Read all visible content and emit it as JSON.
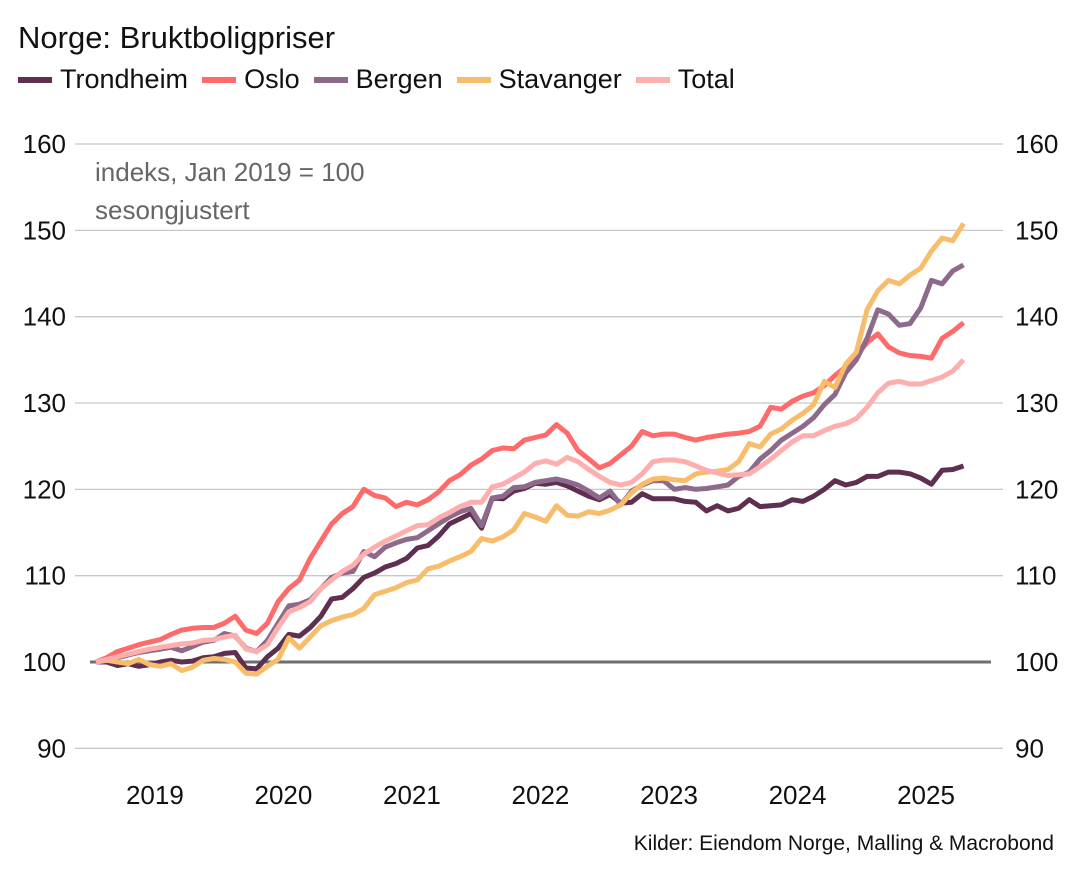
{
  "chart_data": {
    "type": "line",
    "title": "Norge: Bruktboligpriser",
    "annotations": [
      "indeks, Jan 2019 = 100",
      "sesongjustert"
    ],
    "source": "Kilder: Eiendom Norge, Malling & Macrobond",
    "ylim": [
      90,
      160
    ],
    "yticks": [
      90,
      100,
      110,
      120,
      130,
      140,
      150,
      160
    ],
    "xtick_labels": [
      "2019",
      "2020",
      "2021",
      "2022",
      "2023",
      "2024",
      "2025"
    ],
    "grid": true,
    "legend_placement": "top",
    "reference_line": 100,
    "x": [
      "2019-01",
      "2019-02",
      "2019-03",
      "2019-04",
      "2019-05",
      "2019-06",
      "2019-07",
      "2019-08",
      "2019-09",
      "2019-10",
      "2019-11",
      "2019-12",
      "2020-01",
      "2020-02",
      "2020-03",
      "2020-04",
      "2020-05",
      "2020-06",
      "2020-07",
      "2020-08",
      "2020-09",
      "2020-10",
      "2020-11",
      "2020-12",
      "2021-01",
      "2021-02",
      "2021-03",
      "2021-04",
      "2021-05",
      "2021-06",
      "2021-07",
      "2021-08",
      "2021-09",
      "2021-10",
      "2021-11",
      "2021-12",
      "2022-01",
      "2022-02",
      "2022-03",
      "2022-04",
      "2022-05",
      "2022-06",
      "2022-07",
      "2022-08",
      "2022-09",
      "2022-10",
      "2022-11",
      "2022-12",
      "2023-01",
      "2023-02",
      "2023-03",
      "2023-04",
      "2023-05",
      "2023-06",
      "2023-07",
      "2023-08",
      "2023-09",
      "2023-10",
      "2023-11",
      "2023-12",
      "2024-01",
      "2024-02",
      "2024-03",
      "2024-04",
      "2024-05",
      "2024-06",
      "2024-07",
      "2024-08",
      "2024-09",
      "2024-10",
      "2024-11",
      "2024-12",
      "2025-01",
      "2025-02",
      "2025-03",
      "2025-04",
      "2025-05",
      "2025-06",
      "2025-07",
      "2025-08",
      "2025-09",
      "2025-10"
    ],
    "series": [
      {
        "name": "Trondheim",
        "color": "#5e2f4e",
        "values": [
          100,
          100,
          99.6,
          99.8,
          99.5,
          99.7,
          100,
          100.2,
          100,
          100.1,
          100.5,
          100.6,
          101,
          101.1,
          99.3,
          99.2,
          100.6,
          101.6,
          103.2,
          103,
          104,
          105.3,
          107.3,
          107.5,
          108.5,
          109.8,
          110.3,
          111,
          111.4,
          112,
          113.2,
          113.5,
          114.6,
          116,
          116.6,
          117.2,
          115.5,
          119,
          118.9,
          119.8,
          120.1,
          120.7,
          120.6,
          120.8,
          120.4,
          119.8,
          119.2,
          118.8,
          119.4,
          118.4,
          118.5,
          119.5,
          118.9,
          118.9,
          118.9,
          118.6,
          118.5,
          117.5,
          118.1,
          117.5,
          117.8,
          118.8,
          118,
          118.1,
          118.2,
          118.8,
          118.6,
          119.2,
          120,
          121,
          120.5,
          120.8,
          121.5,
          121.5,
          122,
          122,
          121.8,
          121.3,
          120.6,
          122.2,
          122.3,
          122.7
        ]
      },
      {
        "name": "Oslo",
        "color": "#ff6b6b",
        "values": [
          100,
          100.5,
          101.2,
          101.6,
          102,
          102.3,
          102.6,
          103.2,
          103.7,
          103.9,
          104,
          104,
          104.5,
          105.3,
          103.7,
          103.3,
          104.5,
          107,
          108.5,
          109.5,
          112,
          114,
          116,
          117.2,
          118,
          120,
          119.3,
          119,
          118,
          118.5,
          118.2,
          118.8,
          119.7,
          121,
          121.7,
          122.8,
          123.5,
          124.5,
          124.8,
          124.7,
          125.7,
          126,
          126.3,
          127.5,
          126.5,
          124.5,
          123.5,
          122.5,
          123,
          124,
          125,
          126.7,
          126.2,
          126.4,
          126.4,
          126,
          125.7,
          126,
          126.2,
          126.4,
          126.5,
          126.7,
          127.3,
          129.5,
          129.3,
          130.2,
          130.8,
          131.2,
          132,
          133.2,
          134.2,
          135.5,
          137,
          138,
          136.5,
          135.8,
          135.5,
          135.4,
          135.2,
          137.5,
          138.3,
          139.3
        ]
      },
      {
        "name": "Bergen",
        "color": "#8e6a8a",
        "values": [
          100,
          100.2,
          100.5,
          100.8,
          101.1,
          101.3,
          101.5,
          101.7,
          101.3,
          101.8,
          102.3,
          102.5,
          103.3,
          103,
          101.6,
          101.2,
          102.5,
          104.5,
          106.5,
          106.7,
          107.2,
          108.5,
          109.8,
          110.3,
          110.5,
          112.8,
          112.2,
          113.3,
          113.8,
          114.2,
          114.4,
          115.2,
          116,
          116.8,
          117.4,
          117.8,
          115.8,
          119,
          119.2,
          120.2,
          120.3,
          120.8,
          121,
          121.2,
          120.9,
          120.5,
          119.8,
          119,
          119.8,
          118.2,
          119.8,
          120.5,
          121,
          121,
          120,
          120.2,
          120,
          120.1,
          120.3,
          120.5,
          121.5,
          122,
          123.5,
          124.5,
          125.7,
          126.5,
          127.3,
          128.3,
          129.8,
          131,
          133.5,
          135,
          137.5,
          140.8,
          140.3,
          139,
          139.2,
          141,
          144.2,
          143.8,
          145.3,
          146
        ]
      },
      {
        "name": "Stavanger",
        "color": "#f7bd6a",
        "values": [
          100,
          100.2,
          100,
          99.8,
          100.3,
          99.7,
          99.5,
          99.8,
          99,
          99.4,
          100.2,
          100.4,
          100.3,
          100,
          98.7,
          98.6,
          99.5,
          100.3,
          102.8,
          101.6,
          102.9,
          104.2,
          104.8,
          105.2,
          105.5,
          106.2,
          107.8,
          108.2,
          108.6,
          109.2,
          109.5,
          110.8,
          111.1,
          111.7,
          112.2,
          112.8,
          114.3,
          114,
          114.5,
          115.3,
          117.2,
          116.8,
          116.3,
          118.1,
          117,
          116.9,
          117.4,
          117.2,
          117.6,
          118.2,
          119.6,
          120.6,
          121.2,
          121.3,
          121.1,
          121,
          121.8,
          122,
          122.1,
          122.3,
          123.2,
          125.3,
          124.9,
          126.4,
          127,
          128,
          128.8,
          129.8,
          132.5,
          131.8,
          134.5,
          135.9,
          140.8,
          143,
          144.2,
          143.8,
          144.8,
          145.6,
          147.6,
          149.1,
          148.8,
          150.8
        ]
      },
      {
        "name": "Total",
        "color": "#ffaeae",
        "values": [
          100,
          100.3,
          100.6,
          100.9,
          101.2,
          101.5,
          101.7,
          101.9,
          102.1,
          102.2,
          102.5,
          102.6,
          102.9,
          103.1,
          101.5,
          101.2,
          102,
          104,
          105.8,
          106.3,
          107,
          108.5,
          109.5,
          110.5,
          111.2,
          112.5,
          113.3,
          114,
          114.6,
          115.2,
          115.8,
          115.9,
          116.7,
          117.3,
          118,
          118.5,
          118.5,
          120.3,
          120.6,
          121.3,
          122,
          123,
          123.3,
          122.9,
          123.7,
          123.2,
          122.3,
          121.5,
          120.8,
          120.5,
          120.8,
          121.8,
          123.2,
          123.4,
          123.4,
          123.2,
          122.7,
          122.2,
          121.9,
          121.6,
          121.7,
          121.8,
          122.6,
          123.5,
          124.5,
          125.5,
          126.2,
          126.2,
          126.8,
          127.3,
          127.6,
          128.2,
          129.5,
          131.2,
          132.3,
          132.5,
          132.2,
          132.2,
          132.6,
          133,
          133.7,
          135
        ]
      }
    ]
  }
}
